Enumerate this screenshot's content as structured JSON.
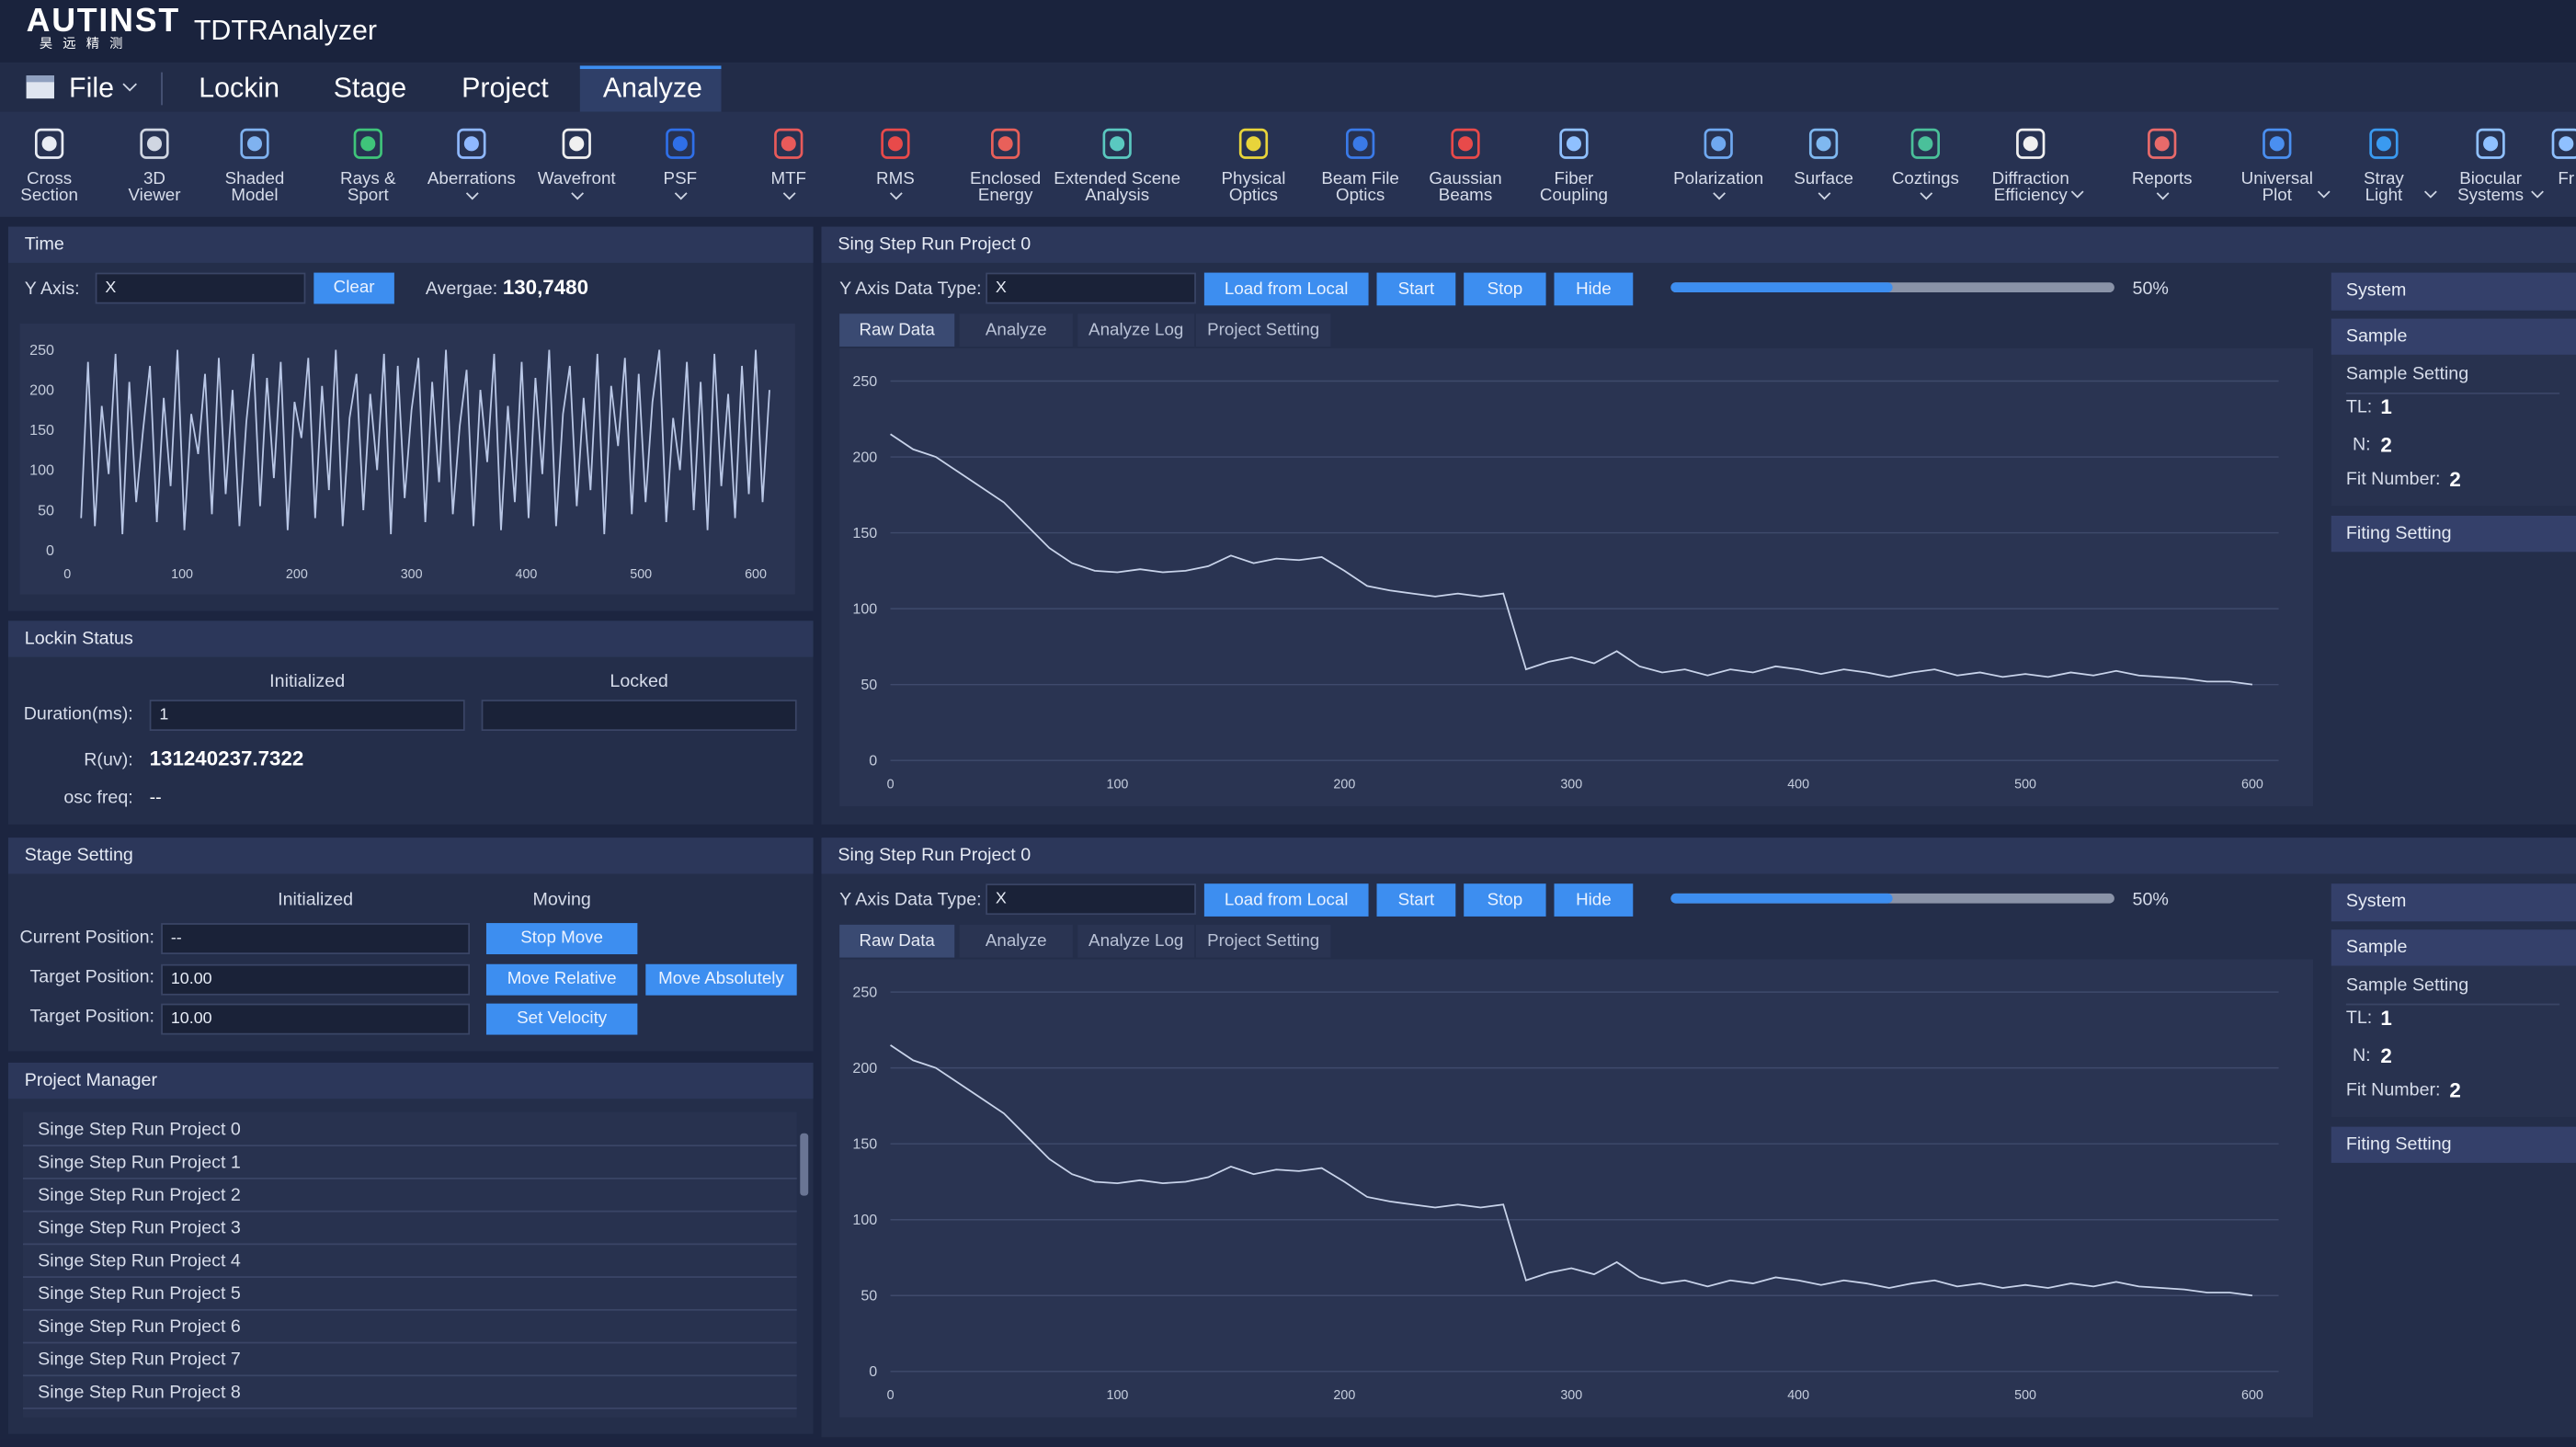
{
  "app": {
    "brand": "AUTINST",
    "brand_sub": "昊 远 精 测",
    "title": "TDTRAnalyzer"
  },
  "menu": {
    "file": "File",
    "items": [
      "Lockin",
      "Stage",
      "Project",
      "Analyze"
    ]
  },
  "toolbar": [
    {
      "label": [
        "Cross",
        "Section"
      ],
      "dropdown": false,
      "color": "#e8ecf4"
    },
    {
      "label": [
        "3D",
        "Viewer"
      ],
      "dropdown": false,
      "color": "#d0d6e2"
    },
    {
      "label": [
        "Shaded",
        "Model"
      ],
      "dropdown": false,
      "color": "#7fb2f0"
    },
    {
      "label": [
        "Rays &",
        "Sport"
      ],
      "dropdown": false,
      "color": "#3fc47a"
    },
    {
      "label": [
        "Aberrations"
      ],
      "dropdown": true,
      "color": "#8fb8ff"
    },
    {
      "label": [
        "Wavefront"
      ],
      "dropdown": true,
      "color": "#f0f0f0"
    },
    {
      "label": [
        "PSF"
      ],
      "dropdown": true,
      "color": "#2f6fe8"
    },
    {
      "label": [
        "MTF"
      ],
      "dropdown": true,
      "color": "#e85a5a"
    },
    {
      "label": [
        "RMS"
      ],
      "dropdown": true,
      "color": "#e84a4a"
    },
    {
      "label": [
        "Enclosed",
        "Energy"
      ],
      "dropdown": false,
      "color": "#e8605a"
    },
    {
      "label": [
        "Extended Scene",
        "Analysis"
      ],
      "dropdown": false,
      "color": "#5ac8c0"
    },
    {
      "label": [
        "Physical",
        "Optics"
      ],
      "dropdown": false,
      "color": "#e8d43a"
    },
    {
      "label": [
        "Beam File",
        "Optics"
      ],
      "dropdown": false,
      "color": "#3a7ae8"
    },
    {
      "label": [
        "Gaussian",
        "Beams"
      ],
      "dropdown": false,
      "color": "#e84a4a"
    },
    {
      "label": [
        "Fiber",
        "Coupling"
      ],
      "dropdown": false,
      "color": "#8fc0ff"
    },
    {
      "label": [
        "Polarization"
      ],
      "dropdown": true,
      "color": "#6fa8f0"
    },
    {
      "label": [
        "Surface"
      ],
      "dropdown": true,
      "color": "#7fb8f0"
    },
    {
      "label": [
        "Coztings"
      ],
      "dropdown": true,
      "color": "#4ac09a"
    },
    {
      "label": [
        "Diffraction",
        "Efficiency"
      ],
      "dropdown": true,
      "color": "#f0f0f0"
    },
    {
      "label": [
        "Reports"
      ],
      "dropdown": true,
      "color": "#e86a6a"
    },
    {
      "label": [
        "Universal",
        "Plot"
      ],
      "dropdown": true,
      "color": "#4a8ff0"
    },
    {
      "label": [
        "Stray",
        "Light"
      ],
      "dropdown": true,
      "color": "#3a9af0"
    },
    {
      "label": [
        "Biocular",
        "Systems"
      ],
      "dropdown": true,
      "color": "#8fc0ff"
    },
    {
      "label": [
        "Fr"
      ],
      "dropdown": false,
      "color": "#8fc0ff"
    }
  ],
  "time": {
    "title": "Time",
    "y_axis_label": "Y Axis:",
    "input": "X",
    "clear": "Clear",
    "average_label": "Avergae:",
    "average": "130,7480",
    "chart": {
      "type": "line",
      "color": "#b9c7e6",
      "grid": false,
      "xlim": [
        0,
        600
      ],
      "ylim": [
        0,
        250
      ],
      "xticks": [
        0,
        100,
        200,
        300,
        400,
        500,
        600
      ],
      "yticks": [
        0,
        50,
        100,
        150,
        200,
        250
      ],
      "x": [
        12,
        18,
        24,
        30,
        36,
        42,
        48,
        54,
        60,
        66,
        72,
        78,
        84,
        90,
        96,
        102,
        108,
        114,
        120,
        126,
        132,
        138,
        144,
        150,
        156,
        162,
        168,
        174,
        180,
        186,
        192,
        198,
        204,
        210,
        216,
        222,
        228,
        234,
        240,
        246,
        252,
        258,
        264,
        270,
        276,
        282,
        288,
        294,
        300,
        306,
        312,
        318,
        324,
        330,
        336,
        342,
        348,
        354,
        360,
        366,
        372,
        378,
        384,
        390,
        396,
        402,
        408,
        414,
        420,
        426,
        432,
        438,
        444,
        450,
        456,
        462,
        468,
        474,
        480,
        486,
        492,
        498,
        504,
        510,
        516,
        522,
        528,
        534,
        540,
        546,
        552,
        558,
        564,
        570,
        576,
        582,
        588,
        594,
        600,
        606,
        612
      ],
      "values": [
        40,
        235,
        30,
        180,
        95,
        245,
        20,
        210,
        60,
        150,
        230,
        35,
        190,
        80,
        250,
        25,
        170,
        120,
        220,
        45,
        240,
        70,
        200,
        30,
        160,
        245,
        55,
        215,
        90,
        235,
        25,
        185,
        140,
        240,
        40,
        205,
        75,
        250,
        30,
        165,
        220,
        50,
        195,
        100,
        245,
        20,
        230,
        65,
        175,
        240,
        35,
        210,
        85,
        250,
        45,
        155,
        225,
        30,
        200,
        110,
        245,
        25,
        180,
        60,
        235,
        40,
        215,
        95,
        250,
        30,
        170,
        230,
        55,
        190,
        75,
        245,
        20,
        205,
        130,
        240,
        45,
        220,
        60,
        185,
        250,
        35,
        165,
        100,
        235,
        50,
        210,
        25,
        245,
        80,
        195,
        40,
        230,
        70,
        250,
        60,
        200
      ]
    }
  },
  "lockin": {
    "title": "Lockin Status",
    "columns": [
      "Initialized",
      "Locked"
    ],
    "duration_label": "Duration(ms):",
    "duration": "1",
    "r_label": "R(uv):",
    "r": "131240237.7322",
    "osc_label": "osc freq:",
    "osc": "--"
  },
  "stage": {
    "title": "Stage Setting",
    "columns": [
      "Initialized",
      "Moving"
    ],
    "current_label": "Current Position:",
    "current": "--",
    "target_label": "Target Position:",
    "target": "10.00",
    "target2_label": "Target Position:",
    "target2": "10.00",
    "buttons": [
      "Stop Move",
      "Move Relative",
      "Move Absolutely",
      "Set Velocity"
    ]
  },
  "projects": {
    "title": "Project Manager",
    "items": [
      "Singe Step Run Project 0",
      "Singe Step Run Project 1",
      "Singe Step Run Project 2",
      "Singe Step Run Project 3",
      "Singe Step Run Project 4",
      "Singe Step Run Project 5",
      "Singe Step Run Project 6",
      "Singe Step Run Project 7",
      "Singe Step Run Project 8"
    ]
  },
  "run_panels": [
    {
      "title": "Sing Step Run Project 0",
      "y_label": "Y Axis Data Type:",
      "input": "X",
      "buttons": [
        "Load from Local",
        "Start",
        "Stop",
        "Hide"
      ],
      "progress": {
        "value": 50,
        "label": "50%"
      },
      "tabs": [
        "Raw Data",
        "Analyze",
        "Analyze Log",
        "Project Setting"
      ],
      "side": {
        "system": "System",
        "sample": "Sample",
        "sample_setting": "Sample Setting",
        "tl_label": "TL:",
        "tl": 1,
        "n_label": "N:",
        "n": 2,
        "fit_label": "Fit Number:",
        "fit": 2,
        "fitting": "Fiting Setting"
      },
      "chart": {
        "type": "line",
        "color": "#c8d3ea",
        "grid": true,
        "xlim": [
          0,
          600
        ],
        "ylim": [
          0,
          250
        ],
        "xticks": [
          0,
          100,
          200,
          300,
          400,
          500,
          600
        ],
        "yticks": [
          0,
          50,
          100,
          150,
          200,
          250
        ],
        "x": [
          0,
          10,
          20,
          30,
          40,
          50,
          60,
          70,
          80,
          90,
          100,
          110,
          120,
          130,
          140,
          150,
          160,
          170,
          180,
          190,
          200,
          210,
          220,
          230,
          240,
          250,
          260,
          270,
          280,
          290,
          300,
          310,
          320,
          330,
          340,
          350,
          360,
          370,
          380,
          390,
          400,
          410,
          420,
          430,
          440,
          450,
          460,
          470,
          480,
          490,
          500,
          510,
          520,
          530,
          540,
          550,
          560,
          570,
          580,
          590,
          600
        ],
        "values": [
          215,
          205,
          200,
          190,
          180,
          170,
          155,
          140,
          130,
          125,
          124,
          126,
          124,
          125,
          128,
          135,
          130,
          133,
          132,
          134,
          125,
          115,
          112,
          110,
          108,
          110,
          108,
          110,
          60,
          65,
          68,
          64,
          72,
          62,
          58,
          60,
          56,
          60,
          58,
          62,
          60,
          57,
          60,
          58,
          55,
          58,
          60,
          56,
          58,
          55,
          57,
          55,
          58,
          56,
          59,
          56,
          55,
          54,
          52,
          52,
          50
        ]
      }
    },
    {
      "title": "Sing Step Run Project 0",
      "y_label": "Y Axis Data Type:",
      "input": "X",
      "buttons": [
        "Load from Local",
        "Start",
        "Stop",
        "Hide"
      ],
      "progress": {
        "value": 50,
        "label": "50%"
      },
      "tabs": [
        "Raw Data",
        "Analyze",
        "Analyze Log",
        "Project Setting"
      ],
      "side": {
        "system": "System",
        "sample": "Sample",
        "sample_setting": "Sample Setting",
        "tl_label": "TL:",
        "tl": 1,
        "n_label": "N:",
        "n": 2,
        "fit_label": "Fit Number:",
        "fit": 2,
        "fitting": "Fiting Setting"
      },
      "chart": {
        "type": "line",
        "color": "#c8d3ea",
        "grid": true,
        "xlim": [
          0,
          600
        ],
        "ylim": [
          0,
          250
        ],
        "xticks": [
          0,
          100,
          200,
          300,
          400,
          500,
          600
        ],
        "yticks": [
          0,
          50,
          100,
          150,
          200,
          250
        ],
        "x": [
          0,
          10,
          20,
          30,
          40,
          50,
          60,
          70,
          80,
          90,
          100,
          110,
          120,
          130,
          140,
          150,
          160,
          170,
          180,
          190,
          200,
          210,
          220,
          230,
          240,
          250,
          260,
          270,
          280,
          290,
          300,
          310,
          320,
          330,
          340,
          350,
          360,
          370,
          380,
          390,
          400,
          410,
          420,
          430,
          440,
          450,
          460,
          470,
          480,
          490,
          500,
          510,
          520,
          530,
          540,
          550,
          560,
          570,
          580,
          590,
          600
        ],
        "values": [
          215,
          205,
          200,
          190,
          180,
          170,
          155,
          140,
          130,
          125,
          124,
          126,
          124,
          125,
          128,
          135,
          130,
          133,
          132,
          134,
          125,
          115,
          112,
          110,
          108,
          110,
          108,
          110,
          60,
          65,
          68,
          64,
          72,
          62,
          58,
          60,
          56,
          60,
          58,
          62,
          60,
          57,
          60,
          58,
          55,
          58,
          60,
          56,
          58,
          55,
          57,
          55,
          58,
          56,
          59,
          56,
          55,
          54,
          52,
          52,
          50
        ]
      }
    }
  ]
}
